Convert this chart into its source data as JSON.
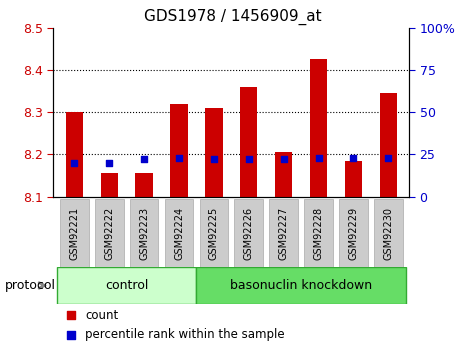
{
  "title": "GDS1978 / 1456909_at",
  "categories": [
    "GSM92221",
    "GSM92222",
    "GSM92223",
    "GSM92224",
    "GSM92225",
    "GSM92226",
    "GSM92227",
    "GSM92228",
    "GSM92229",
    "GSM92230"
  ],
  "count_values": [
    8.3,
    8.155,
    8.155,
    8.32,
    8.31,
    8.36,
    8.205,
    8.425,
    8.185,
    8.345
  ],
  "percentile_values": [
    20,
    20,
    22,
    23,
    22,
    22,
    22,
    23,
    23,
    23
  ],
  "ylim_left": [
    8.1,
    8.5
  ],
  "ylim_right": [
    0,
    100
  ],
  "yticks_left": [
    8.1,
    8.2,
    8.3,
    8.4,
    8.5
  ],
  "yticks_right": [
    0,
    25,
    50,
    75,
    100
  ],
  "grid_values": [
    8.2,
    8.3,
    8.4
  ],
  "left_color": "#cc0000",
  "right_color": "#0000cc",
  "bar_color": "#cc0000",
  "dot_color": "#0000cc",
  "n_control": 4,
  "n_knockdown": 6,
  "control_label": "control",
  "knockdown_label": "basonuclin knockdown",
  "protocol_label": "protocol",
  "legend_count": "count",
  "legend_percentile": "percentile rank within the sample",
  "control_color": "#ccffcc",
  "knockdown_color": "#66dd66",
  "tick_label_bg": "#cccccc"
}
